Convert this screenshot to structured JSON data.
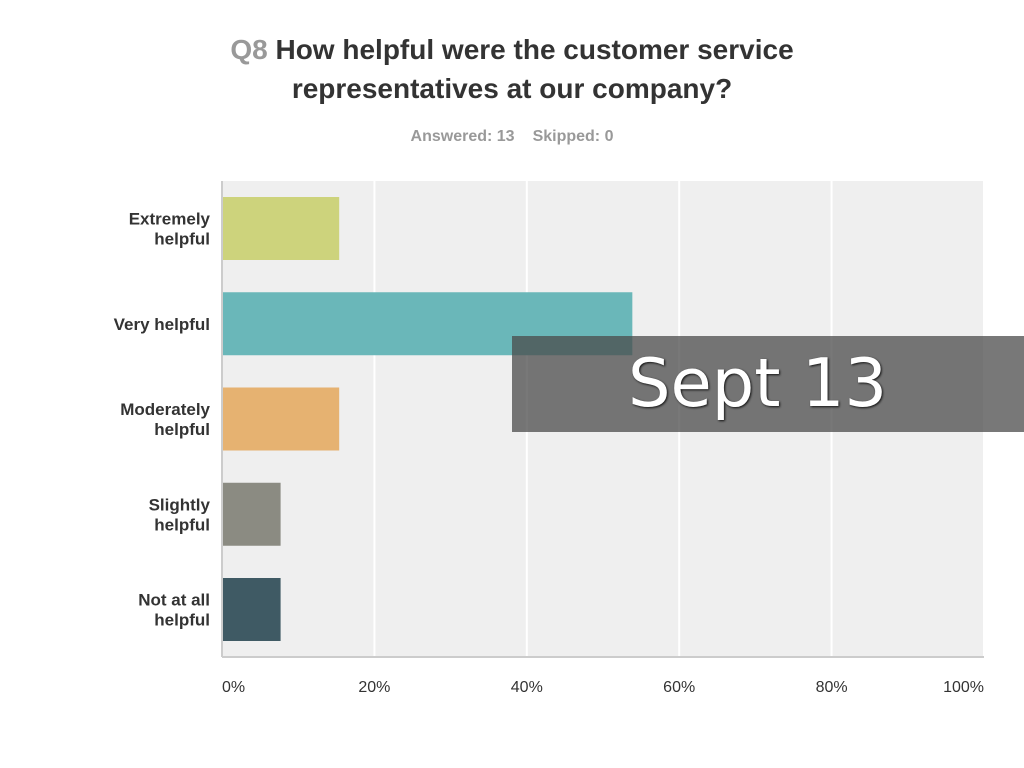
{
  "question": {
    "number": "Q8",
    "line1": "How helpful were the customer service",
    "line2": "representatives at our company?"
  },
  "summary": {
    "answered": "Answered: 13",
    "skipped": "Skipped: 0"
  },
  "banner": {
    "text": "Sept 13"
  },
  "chart_data": {
    "type": "bar",
    "orientation": "horizontal",
    "title": "Q8 How helpful were the customer service representatives at our company?",
    "categories": [
      [
        "Extremely",
        "helpful"
      ],
      [
        "Very helpful"
      ],
      [
        "Moderately",
        "helpful"
      ],
      [
        "Slightly",
        "helpful"
      ],
      [
        "Not at all",
        "helpful"
      ]
    ],
    "values": [
      15.38,
      53.85,
      15.38,
      7.69,
      7.69
    ],
    "colors": [
      "#cdd37c",
      "#6ab7b9",
      "#e6b271",
      "#8b8b82",
      "#3f5a64"
    ],
    "xlim": [
      0,
      100
    ],
    "xticks": [
      "0%",
      "20%",
      "40%",
      "60%",
      "80%",
      "100%"
    ],
    "grid": true,
    "plot_background": "#efefef",
    "grid_color": "#ffffff"
  }
}
